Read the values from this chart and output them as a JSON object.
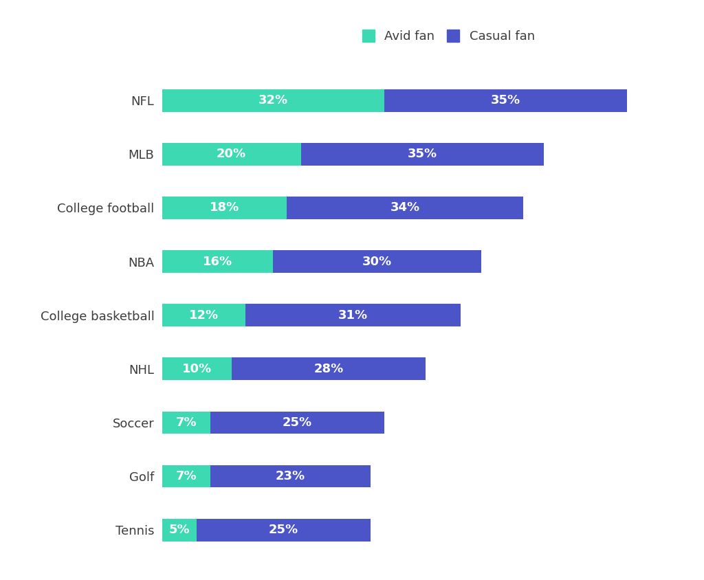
{
  "categories": [
    "NFL",
    "MLB",
    "College football",
    "NBA",
    "College basketball",
    "NHL",
    "Soccer",
    "Golf",
    "Tennis"
  ],
  "avid": [
    32,
    20,
    18,
    16,
    12,
    10,
    7,
    7,
    5
  ],
  "casual": [
    35,
    35,
    34,
    30,
    31,
    28,
    25,
    23,
    25
  ],
  "avid_color": "#3dd9b3",
  "casual_color": "#4b55c8",
  "avid_label": "Avid fan",
  "casual_label": "Casual fan",
  "background_color": "#ffffff",
  "bar_height": 0.42,
  "label_fontsize": 13,
  "tick_fontsize": 13,
  "legend_fontsize": 13,
  "text_color_bar": "#ffffff",
  "text_color_label": "#3d3d3d"
}
